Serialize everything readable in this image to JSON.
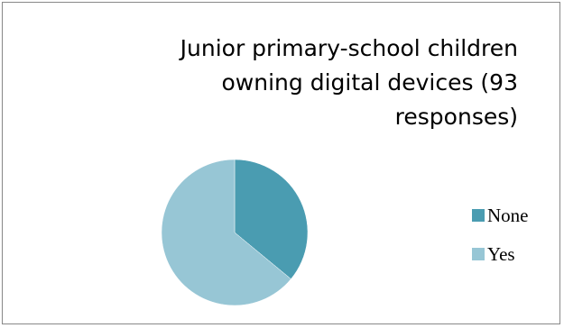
{
  "chart_data": {
    "type": "pie",
    "title_lines": [
      "Junior primary-school children",
      "owning digital devices (93",
      "responses)"
    ],
    "categories": [
      "None",
      "Yes"
    ],
    "values": [
      36,
      64
    ],
    "value_unit": "percent (estimated)",
    "colors": [
      "#4a9cb1",
      "#97c6d5"
    ],
    "legend_position": "right"
  }
}
